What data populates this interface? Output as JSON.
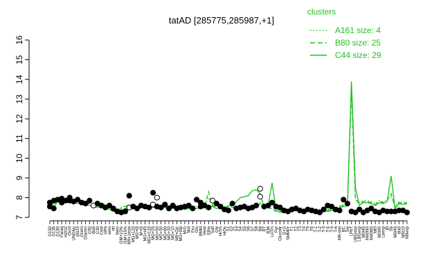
{
  "chart_data": {
    "type": "line",
    "title": "tatAD [285775,285987,+1]",
    "xlabel": "",
    "ylabel": "",
    "ylim": [
      7,
      16
    ],
    "yticks": [
      7,
      8,
      9,
      10,
      11,
      12,
      13,
      14,
      15,
      16
    ],
    "grid": false,
    "legend": {
      "title": "clusters",
      "placement": "top-right",
      "entries": [
        {
          "label": "A161 size: 4",
          "style": "dotted"
        },
        {
          "label": "B80 size: 25",
          "style": "dashed"
        },
        {
          "label": "C44 size: 29",
          "style": "solid"
        }
      ]
    },
    "line_color": "#22c122",
    "xtick_labels": [
      "G150",
      "G135",
      "G180",
      "Paraq",
      "H2O2",
      "Oxctl",
      "UNGlyc",
      "dia15",
      "Diami",
      "Diamm",
      "C90",
      "dia5",
      "C30",
      "Cold",
      "HPh",
      "aero",
      "nit",
      "ferm",
      "GM+10%",
      "GM+15%",
      "M9+1ncbi",
      "MG+120",
      "MG+t5",
      "M+t5",
      "MG+t45",
      "MG+t120",
      "MG+25",
      "MG+90",
      "MG+30",
      "MG+60",
      "MG+20",
      "MG+10",
      "M9+Glc",
      "MG+t5b",
      "M/G",
      "Mal",
      "Fru",
      "Glu",
      "BMM",
      "Heat",
      "Etha",
      "Salt",
      "Gly",
      "HiTm",
      "HiOs",
      "S1",
      "S2",
      "S3",
      "S4",
      "S5",
      "S6",
      "S7",
      "S8",
      "B6",
      "BT",
      "B36",
      "LoTm",
      "Pyr",
      "Gluconr",
      "G+S",
      "SMMPr",
      "T1",
      "T2",
      "T3",
      "T4",
      "T5",
      "T6",
      "T-1",
      "T-2",
      "T-3",
      "T-4",
      "T-5",
      "T-6",
      "M9-stat",
      "BC",
      "Sw",
      "LPhT",
      "UBGstat",
      "LBGexp",
      "M0t45",
      "M40t90",
      "M40t60",
      "Mt0",
      "M0t90",
      "Lbexp",
      "BI",
      "Sb",
      "M9t45",
      "dia0",
      "M9t10",
      "M9exp"
    ],
    "series": [
      {
        "name": "C44",
        "style": "solid",
        "y": [
          7.6,
          7.55,
          7.8,
          7.85,
          7.8,
          7.9,
          7.8,
          7.7,
          7.75,
          7.7,
          7.6,
          7.55,
          7.5,
          7.6,
          7.55,
          7.4,
          7.3,
          7.3,
          7.35,
          7.45,
          7.5,
          7.55,
          7.45,
          7.5,
          7.55,
          7.5,
          7.5,
          7.5,
          7.45,
          7.5,
          7.5,
          7.45,
          7.5,
          7.5,
          7.4,
          7.45,
          7.45,
          7.45,
          7.5,
          7.55,
          7.6,
          7.55,
          7.45,
          7.5,
          7.45,
          7.6,
          7.6,
          7.8,
          8.0,
          8.05,
          8.1,
          8.35,
          8.4,
          8.2,
          7.5,
          7.6,
          8.75,
          7.4,
          7.25,
          7.3,
          7.35,
          7.3,
          7.4,
          7.4,
          7.3,
          7.35,
          7.3,
          7.3,
          7.3,
          7.35,
          7.3,
          7.35,
          7.35,
          7.5,
          7.55,
          7.6,
          13.9,
          8.5,
          7.6,
          7.75,
          7.75,
          7.7,
          7.6,
          7.75,
          7.7,
          7.8,
          9.1,
          7.45,
          7.7,
          7.65,
          7.7
        ]
      },
      {
        "name": "B80",
        "style": "dashed",
        "y": [
          7.7,
          7.6,
          7.9,
          7.95,
          7.9,
          7.95,
          7.85,
          7.8,
          7.85,
          7.75,
          7.7,
          7.6,
          7.55,
          7.65,
          7.6,
          7.45,
          7.35,
          7.35,
          7.45,
          7.55,
          7.55,
          7.6,
          7.5,
          7.55,
          7.6,
          7.55,
          7.6,
          7.6,
          7.5,
          7.55,
          7.55,
          7.5,
          7.55,
          7.55,
          7.45,
          7.5,
          7.5,
          7.5,
          7.55,
          7.6,
          8.3,
          7.6,
          7.5,
          7.55,
          7.5,
          7.5,
          7.5,
          7.45,
          7.45,
          7.4,
          7.45,
          7.45,
          7.5,
          7.7,
          7.4,
          7.5,
          7.4,
          7.3,
          7.3,
          7.35,
          7.4,
          7.35,
          7.4,
          7.45,
          7.35,
          7.4,
          7.35,
          7.35,
          7.35,
          7.4,
          7.35,
          7.4,
          7.4,
          7.55,
          7.6,
          7.65,
          13.5,
          7.9,
          7.7,
          7.8,
          7.8,
          7.75,
          7.65,
          7.8,
          7.75,
          7.85,
          8.2,
          7.5,
          7.75,
          7.7,
          7.75
        ]
      },
      {
        "name": "A161",
        "style": "dotted",
        "y": [
          7.75,
          7.65,
          7.9,
          7.95,
          7.95,
          8.0,
          7.9,
          7.85,
          7.85,
          7.8,
          7.75,
          7.65,
          7.6,
          7.7,
          7.65,
          7.5,
          7.4,
          7.4,
          7.5,
          7.6,
          7.6,
          7.65,
          7.55,
          7.6,
          7.65,
          7.6,
          7.65,
          7.65,
          7.55,
          7.6,
          7.6,
          7.55,
          7.6,
          7.6,
          7.5,
          7.55,
          7.55,
          7.55,
          7.6,
          7.65,
          8.0,
          7.65,
          7.55,
          7.6,
          7.55,
          7.55,
          7.55,
          7.5,
          7.5,
          7.45,
          7.5,
          7.5,
          7.55,
          7.75,
          7.45,
          7.55,
          7.45,
          7.35,
          7.35,
          7.4,
          7.45,
          7.4,
          7.45,
          7.5,
          7.4,
          7.45,
          7.4,
          7.4,
          7.4,
          7.45,
          7.4,
          7.45,
          7.45,
          7.6,
          7.65,
          7.7,
          13.7,
          7.95,
          7.75,
          7.85,
          7.85,
          7.8,
          7.7,
          7.85,
          7.8,
          7.9,
          8.1,
          7.55,
          7.8,
          7.75,
          7.8
        ]
      }
    ],
    "points": [
      {
        "x": 0,
        "y": 7.55,
        "f": "#000"
      },
      {
        "x": 0,
        "y": 7.75,
        "f": "#000"
      },
      {
        "x": 1,
        "y": 7.45,
        "f": "#000"
      },
      {
        "x": 1,
        "y": 7.85,
        "f": "#000"
      },
      {
        "x": 2,
        "y": 7.9,
        "f": "#000"
      },
      {
        "x": 3,
        "y": 7.95,
        "f": "#000"
      },
      {
        "x": 3,
        "y": 7.75,
        "f": "#000"
      },
      {
        "x": 4,
        "y": 7.85,
        "f": "#000"
      },
      {
        "x": 5,
        "y": 8.0,
        "f": "#000"
      },
      {
        "x": 5,
        "y": 7.85,
        "f": "#000"
      },
      {
        "x": 6,
        "y": 7.8,
        "f": "#000"
      },
      {
        "x": 7,
        "y": 7.9,
        "f": "#000"
      },
      {
        "x": 8,
        "y": 7.75,
        "f": "#000"
      },
      {
        "x": 9,
        "y": 7.7,
        "f": "#000"
      },
      {
        "x": 10,
        "y": 7.85,
        "f": "#000"
      },
      {
        "x": 11,
        "y": 7.6,
        "f": "#fff"
      },
      {
        "x": 12,
        "y": 7.7,
        "f": "#000"
      },
      {
        "x": 13,
        "y": 7.6,
        "f": "#000"
      },
      {
        "x": 14,
        "y": 7.5,
        "f": "#000"
      },
      {
        "x": 15,
        "y": 7.6,
        "f": "#000"
      },
      {
        "x": 16,
        "y": 7.45,
        "f": "#000"
      },
      {
        "x": 17,
        "y": 7.3,
        "f": "#000"
      },
      {
        "x": 18,
        "y": 7.25,
        "f": "#000"
      },
      {
        "x": 19,
        "y": 7.3,
        "f": "#000"
      },
      {
        "x": 20,
        "y": 8.1,
        "f": "#000"
      },
      {
        "x": 20,
        "y": 7.5,
        "f": "#fff"
      },
      {
        "x": 21,
        "y": 7.55,
        "f": "#000"
      },
      {
        "x": 22,
        "y": 7.45,
        "f": "#000"
      },
      {
        "x": 23,
        "y": 7.6,
        "f": "#000"
      },
      {
        "x": 24,
        "y": 7.55,
        "f": "#000"
      },
      {
        "x": 25,
        "y": 7.5,
        "f": "#000"
      },
      {
        "x": 26,
        "y": 8.25,
        "f": "#000"
      },
      {
        "x": 26,
        "y": 7.65,
        "f": "#fff"
      },
      {
        "x": 27,
        "y": 8.0,
        "f": "#fff"
      },
      {
        "x": 27,
        "y": 7.55,
        "f": "#000"
      },
      {
        "x": 28,
        "y": 7.5,
        "f": "#000"
      },
      {
        "x": 29,
        "y": 7.65,
        "f": "#000"
      },
      {
        "x": 30,
        "y": 7.45,
        "f": "#000"
      },
      {
        "x": 31,
        "y": 7.6,
        "f": "#000"
      },
      {
        "x": 32,
        "y": 7.45,
        "f": "#000"
      },
      {
        "x": 33,
        "y": 7.5,
        "f": "#000"
      },
      {
        "x": 34,
        "y": 7.55,
        "f": "#000"
      },
      {
        "x": 35,
        "y": 7.6,
        "f": "#000"
      },
      {
        "x": 36,
        "y": 7.45,
        "f": "#000"
      },
      {
        "x": 37,
        "y": 7.9,
        "f": "#000"
      },
      {
        "x": 38,
        "y": 7.55,
        "f": "#000"
      },
      {
        "x": 38,
        "y": 7.75,
        "f": "#000"
      },
      {
        "x": 39,
        "y": 7.6,
        "f": "#000"
      },
      {
        "x": 40,
        "y": 7.5,
        "f": "#000"
      },
      {
        "x": 41,
        "y": 7.85,
        "f": "#fff"
      },
      {
        "x": 42,
        "y": 7.7,
        "f": "#000"
      },
      {
        "x": 43,
        "y": 7.55,
        "f": "#000"
      },
      {
        "x": 44,
        "y": 7.4,
        "f": "#000"
      },
      {
        "x": 45,
        "y": 7.35,
        "f": "#000"
      },
      {
        "x": 46,
        "y": 7.7,
        "f": "#000"
      },
      {
        "x": 47,
        "y": 7.45,
        "f": "#000"
      },
      {
        "x": 48,
        "y": 7.5,
        "f": "#000"
      },
      {
        "x": 49,
        "y": 7.55,
        "f": "#000"
      },
      {
        "x": 50,
        "y": 7.45,
        "f": "#000"
      },
      {
        "x": 51,
        "y": 7.5,
        "f": "#000"
      },
      {
        "x": 52,
        "y": 7.6,
        "f": "#000"
      },
      {
        "x": 53,
        "y": 8.45,
        "f": "#fff"
      },
      {
        "x": 53,
        "y": 8.05,
        "f": "#fff"
      },
      {
        "x": 54,
        "y": 7.55,
        "f": "#000"
      },
      {
        "x": 55,
        "y": 7.6,
        "f": "#000"
      },
      {
        "x": 56,
        "y": 7.75,
        "f": "#000"
      },
      {
        "x": 57,
        "y": 7.55,
        "f": "#000"
      },
      {
        "x": 58,
        "y": 7.5,
        "f": "#000"
      },
      {
        "x": 59,
        "y": 7.35,
        "f": "#000"
      },
      {
        "x": 60,
        "y": 7.3,
        "f": "#000"
      },
      {
        "x": 61,
        "y": 7.4,
        "f": "#000"
      },
      {
        "x": 62,
        "y": 7.45,
        "f": "#000"
      },
      {
        "x": 63,
        "y": 7.35,
        "f": "#000"
      },
      {
        "x": 64,
        "y": 7.3,
        "f": "#000"
      },
      {
        "x": 65,
        "y": 7.4,
        "f": "#000"
      },
      {
        "x": 66,
        "y": 7.35,
        "f": "#000"
      },
      {
        "x": 67,
        "y": 7.3,
        "f": "#000"
      },
      {
        "x": 68,
        "y": 7.25,
        "f": "#000"
      },
      {
        "x": 69,
        "y": 7.4,
        "f": "#000"
      },
      {
        "x": 70,
        "y": 7.6,
        "f": "#000"
      },
      {
        "x": 71,
        "y": 7.55,
        "f": "#000"
      },
      {
        "x": 72,
        "y": 7.4,
        "f": "#000"
      },
      {
        "x": 73,
        "y": 7.35,
        "f": "#000"
      },
      {
        "x": 74,
        "y": 7.9,
        "f": "#000"
      },
      {
        "x": 75,
        "y": 7.7,
        "f": "#000"
      },
      {
        "x": 76,
        "y": 7.3,
        "f": "#000"
      },
      {
        "x": 77,
        "y": 7.25,
        "f": "#000"
      },
      {
        "x": 78,
        "y": 7.4,
        "f": "#000"
      },
      {
        "x": 79,
        "y": 7.25,
        "f": "#000"
      },
      {
        "x": 80,
        "y": 7.35,
        "f": "#000"
      },
      {
        "x": 81,
        "y": 7.45,
        "f": "#000"
      },
      {
        "x": 82,
        "y": 7.3,
        "f": "#000"
      },
      {
        "x": 83,
        "y": 7.25,
        "f": "#000"
      },
      {
        "x": 84,
        "y": 7.35,
        "f": "#000"
      },
      {
        "x": 85,
        "y": 7.3,
        "f": "#000"
      },
      {
        "x": 86,
        "y": 7.3,
        "f": "#000"
      },
      {
        "x": 87,
        "y": 7.3,
        "f": "#000"
      },
      {
        "x": 88,
        "y": 7.35,
        "f": "#000"
      },
      {
        "x": 89,
        "y": 7.35,
        "f": "#000"
      },
      {
        "x": 90,
        "y": 7.25,
        "f": "#000"
      }
    ]
  }
}
